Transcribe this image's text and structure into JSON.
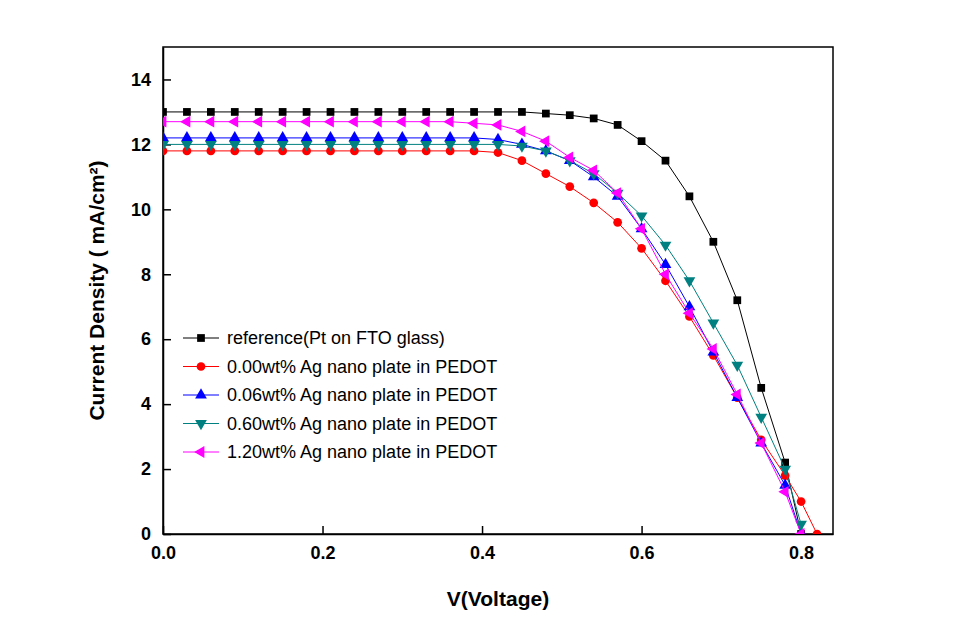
{
  "chart_data": {
    "type": "line",
    "x_label": "V(Voltage)",
    "y_label": "Current Density ( mA/cm²)",
    "x": [
      0.0,
      0.03,
      0.06,
      0.09,
      0.12,
      0.15,
      0.18,
      0.21,
      0.24,
      0.27,
      0.3,
      0.33,
      0.36,
      0.39,
      0.42,
      0.45,
      0.48,
      0.51,
      0.54,
      0.57,
      0.6,
      0.63,
      0.66,
      0.69,
      0.72,
      0.75,
      0.78,
      0.8,
      0.82
    ],
    "series": [
      {
        "name": "reference(Pt on FTO glass)",
        "color": "#000000",
        "marker": "square",
        "values": [
          13.0,
          13.0,
          13.0,
          13.0,
          13.0,
          13.0,
          13.0,
          13.0,
          13.0,
          13.0,
          13.0,
          13.0,
          13.0,
          13.0,
          13.0,
          13.0,
          12.95,
          12.9,
          12.8,
          12.6,
          12.1,
          11.5,
          10.4,
          9.0,
          7.2,
          4.5,
          2.2,
          0.0,
          null
        ]
      },
      {
        "name": "0.00wt% Ag nano plate in PEDOT",
        "color": "#ff0000",
        "marker": "circle",
        "values": [
          11.8,
          11.8,
          11.8,
          11.8,
          11.8,
          11.8,
          11.8,
          11.8,
          11.8,
          11.8,
          11.8,
          11.8,
          11.8,
          11.8,
          11.75,
          11.5,
          11.1,
          10.7,
          10.2,
          9.6,
          8.8,
          7.8,
          6.7,
          5.5,
          4.2,
          2.9,
          1.8,
          1.0,
          0.0
        ]
      },
      {
        "name": "0.06wt% Ag nano plate in PEDOT",
        "color": "#0000ff",
        "marker": "triangle-up",
        "values": [
          12.2,
          12.2,
          12.2,
          12.2,
          12.2,
          12.2,
          12.2,
          12.2,
          12.2,
          12.2,
          12.2,
          12.2,
          12.2,
          12.2,
          12.15,
          12.0,
          11.8,
          11.5,
          11.0,
          10.4,
          9.4,
          8.3,
          7.0,
          5.6,
          4.2,
          2.8,
          1.5,
          0.0,
          null
        ]
      },
      {
        "name": "0.60wt% Ag nano plate in PEDOT",
        "color": "#008080",
        "marker": "triangle-down",
        "values": [
          12.0,
          12.0,
          12.0,
          12.0,
          12.0,
          12.0,
          12.0,
          12.0,
          12.0,
          12.0,
          12.0,
          12.0,
          12.0,
          12.0,
          12.0,
          11.95,
          11.8,
          11.5,
          11.1,
          10.5,
          9.8,
          8.9,
          7.8,
          6.5,
          5.2,
          3.6,
          2.0,
          0.3,
          null
        ]
      },
      {
        "name": "1.20wt% Ag nano plate in PEDOT",
        "color": "#ff00ff",
        "marker": "triangle-left",
        "values": [
          12.7,
          12.7,
          12.7,
          12.7,
          12.7,
          12.7,
          12.7,
          12.7,
          12.7,
          12.7,
          12.7,
          12.7,
          12.7,
          12.65,
          12.6,
          12.4,
          12.1,
          11.6,
          11.2,
          10.5,
          9.4,
          8.0,
          6.8,
          5.7,
          4.3,
          2.8,
          1.3,
          0.0,
          null
        ]
      }
    ],
    "xlim": [
      0,
      0.84
    ],
    "ylim": [
      0,
      15
    ],
    "xticks": [
      {
        "value": 0,
        "label": "0.0"
      },
      {
        "value": 0.2,
        "label": "0.2"
      },
      {
        "value": 0.4,
        "label": "0.4"
      },
      {
        "value": 0.6,
        "label": "0.6"
      },
      {
        "value": 0.8,
        "label": "0.8"
      }
    ],
    "yticks": [
      0,
      2,
      4,
      6,
      8,
      10,
      12,
      14
    ],
    "grid": false,
    "legend": "lower left"
  }
}
